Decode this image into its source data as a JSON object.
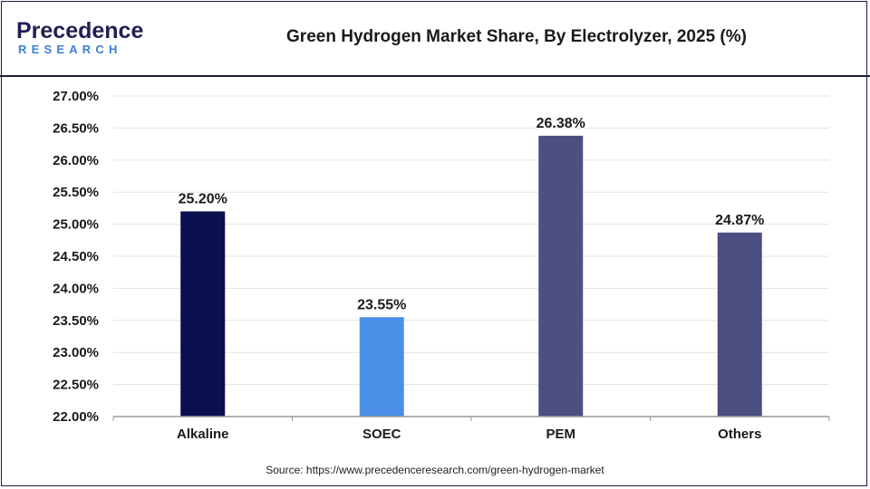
{
  "logo": {
    "brand_text": "Precedence",
    "sub_text": "RESEARCH",
    "colors": {
      "dark": "#1c2054",
      "accent": "#3b7fd4"
    }
  },
  "title": "Green Hydrogen Market Share, By Electrolyzer, 2025 (%)",
  "source": "Source: https://www.precedenceresearch.com/green-hydrogen-market",
  "chart_data": {
    "type": "bar",
    "categories": [
      "Alkaline",
      "SOEC",
      "PEM",
      "Others"
    ],
    "values": [
      25.2,
      23.55,
      26.38,
      24.87
    ],
    "data_labels": [
      "25.20%",
      "23.55%",
      "26.38%",
      "24.87%"
    ],
    "colors": [
      "#0b0f4d",
      "#4a90e8",
      "#4b4f82",
      "#4b4f82"
    ],
    "title": "Green Hydrogen Market Share, By Electrolyzer, 2025 (%)",
    "xlabel": "",
    "ylabel": "",
    "ylim": [
      22.0,
      27.0
    ],
    "yticks": [
      22.0,
      22.5,
      23.0,
      23.5,
      24.0,
      24.5,
      25.0,
      25.5,
      26.0,
      26.5,
      27.0
    ],
    "ytick_labels": [
      "22.00%",
      "22.50%",
      "23.00%",
      "23.50%",
      "24.00%",
      "24.50%",
      "25.00%",
      "25.50%",
      "26.00%",
      "26.50%",
      "27.00%"
    ],
    "grid": true,
    "legend": "none"
  }
}
